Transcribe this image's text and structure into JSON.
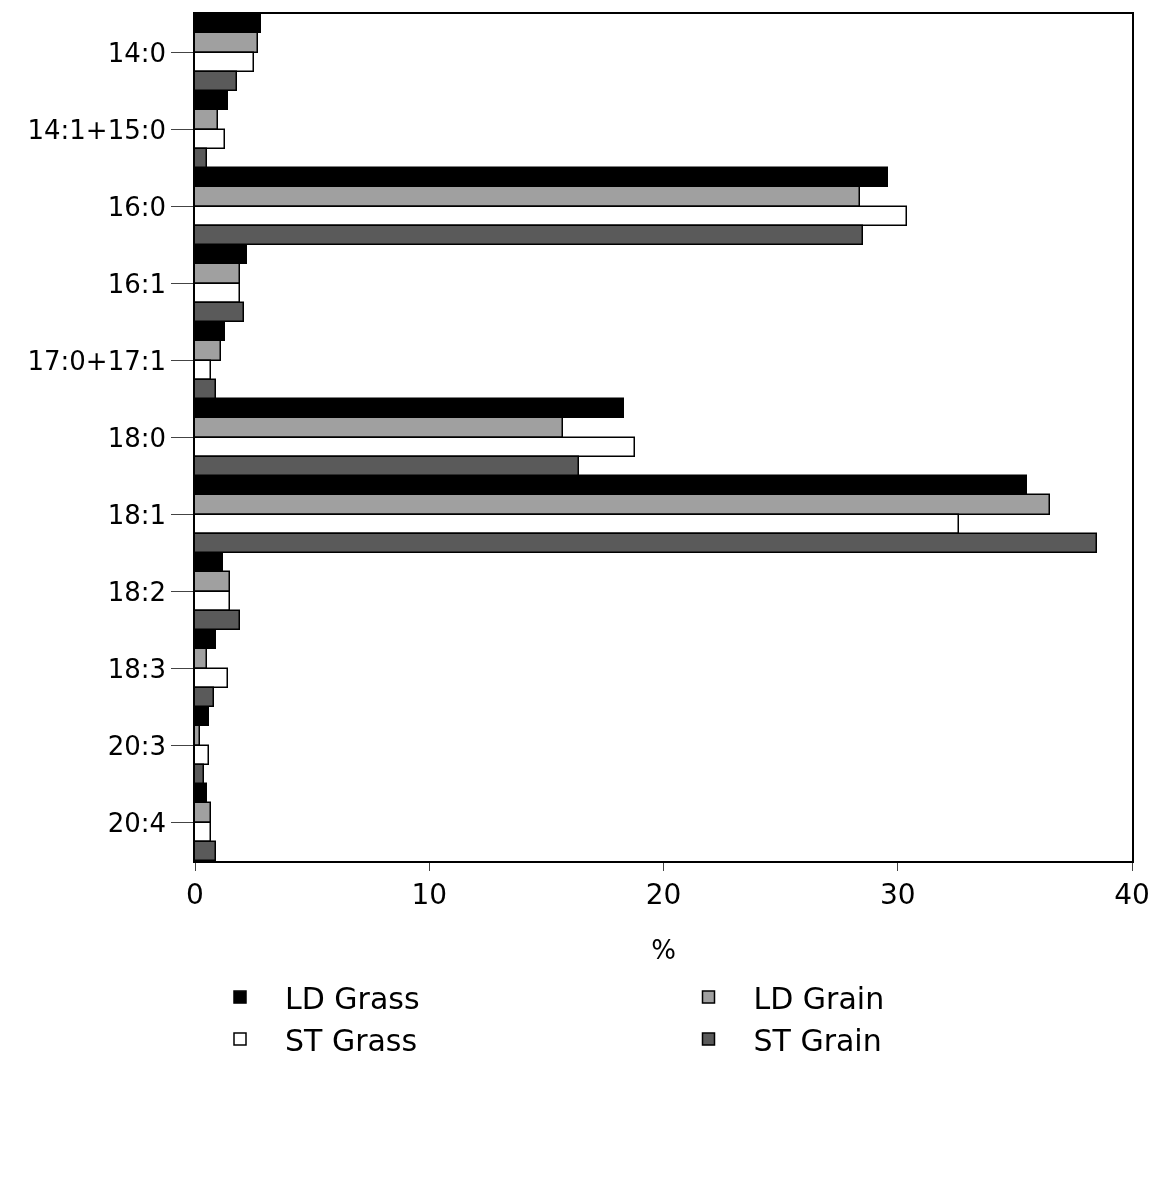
{
  "chart_data": {
    "type": "bar",
    "orientation": "horizontal",
    "xlabel": "%",
    "categories": [
      "14:0",
      "14:1+15:0",
      "16:0",
      "16:1",
      "17:0+17:1",
      "18:0",
      "18:1",
      "18:2",
      "18:3",
      "20:3",
      "20:4"
    ],
    "series": [
      {
        "name": "LD Grass",
        "color": "#000000",
        "values": [
          2.8,
          1.4,
          29.6,
          2.2,
          1.3,
          18.3,
          35.5,
          1.2,
          0.9,
          0.6,
          0.5
        ]
      },
      {
        "name": "LD Grain",
        "color": "#a0a0a0",
        "values": [
          2.7,
          1.0,
          28.4,
          1.9,
          1.1,
          15.7,
          36.5,
          1.5,
          0.5,
          0.2,
          0.7
        ]
      },
      {
        "name": "ST Grass",
        "color": "#ffffff",
        "values": [
          2.5,
          1.3,
          30.4,
          1.9,
          0.7,
          18.8,
          32.6,
          1.5,
          1.4,
          0.6,
          0.7
        ]
      },
      {
        "name": "ST Grain",
        "color": "#5a5a5a",
        "values": [
          1.8,
          0.5,
          28.5,
          2.1,
          0.9,
          16.4,
          38.5,
          1.9,
          0.8,
          0.4,
          0.9
        ]
      }
    ],
    "xlim": [
      0,
      40
    ],
    "xticks": [
      0,
      10,
      20,
      30,
      40
    ],
    "legend": "bottom"
  }
}
